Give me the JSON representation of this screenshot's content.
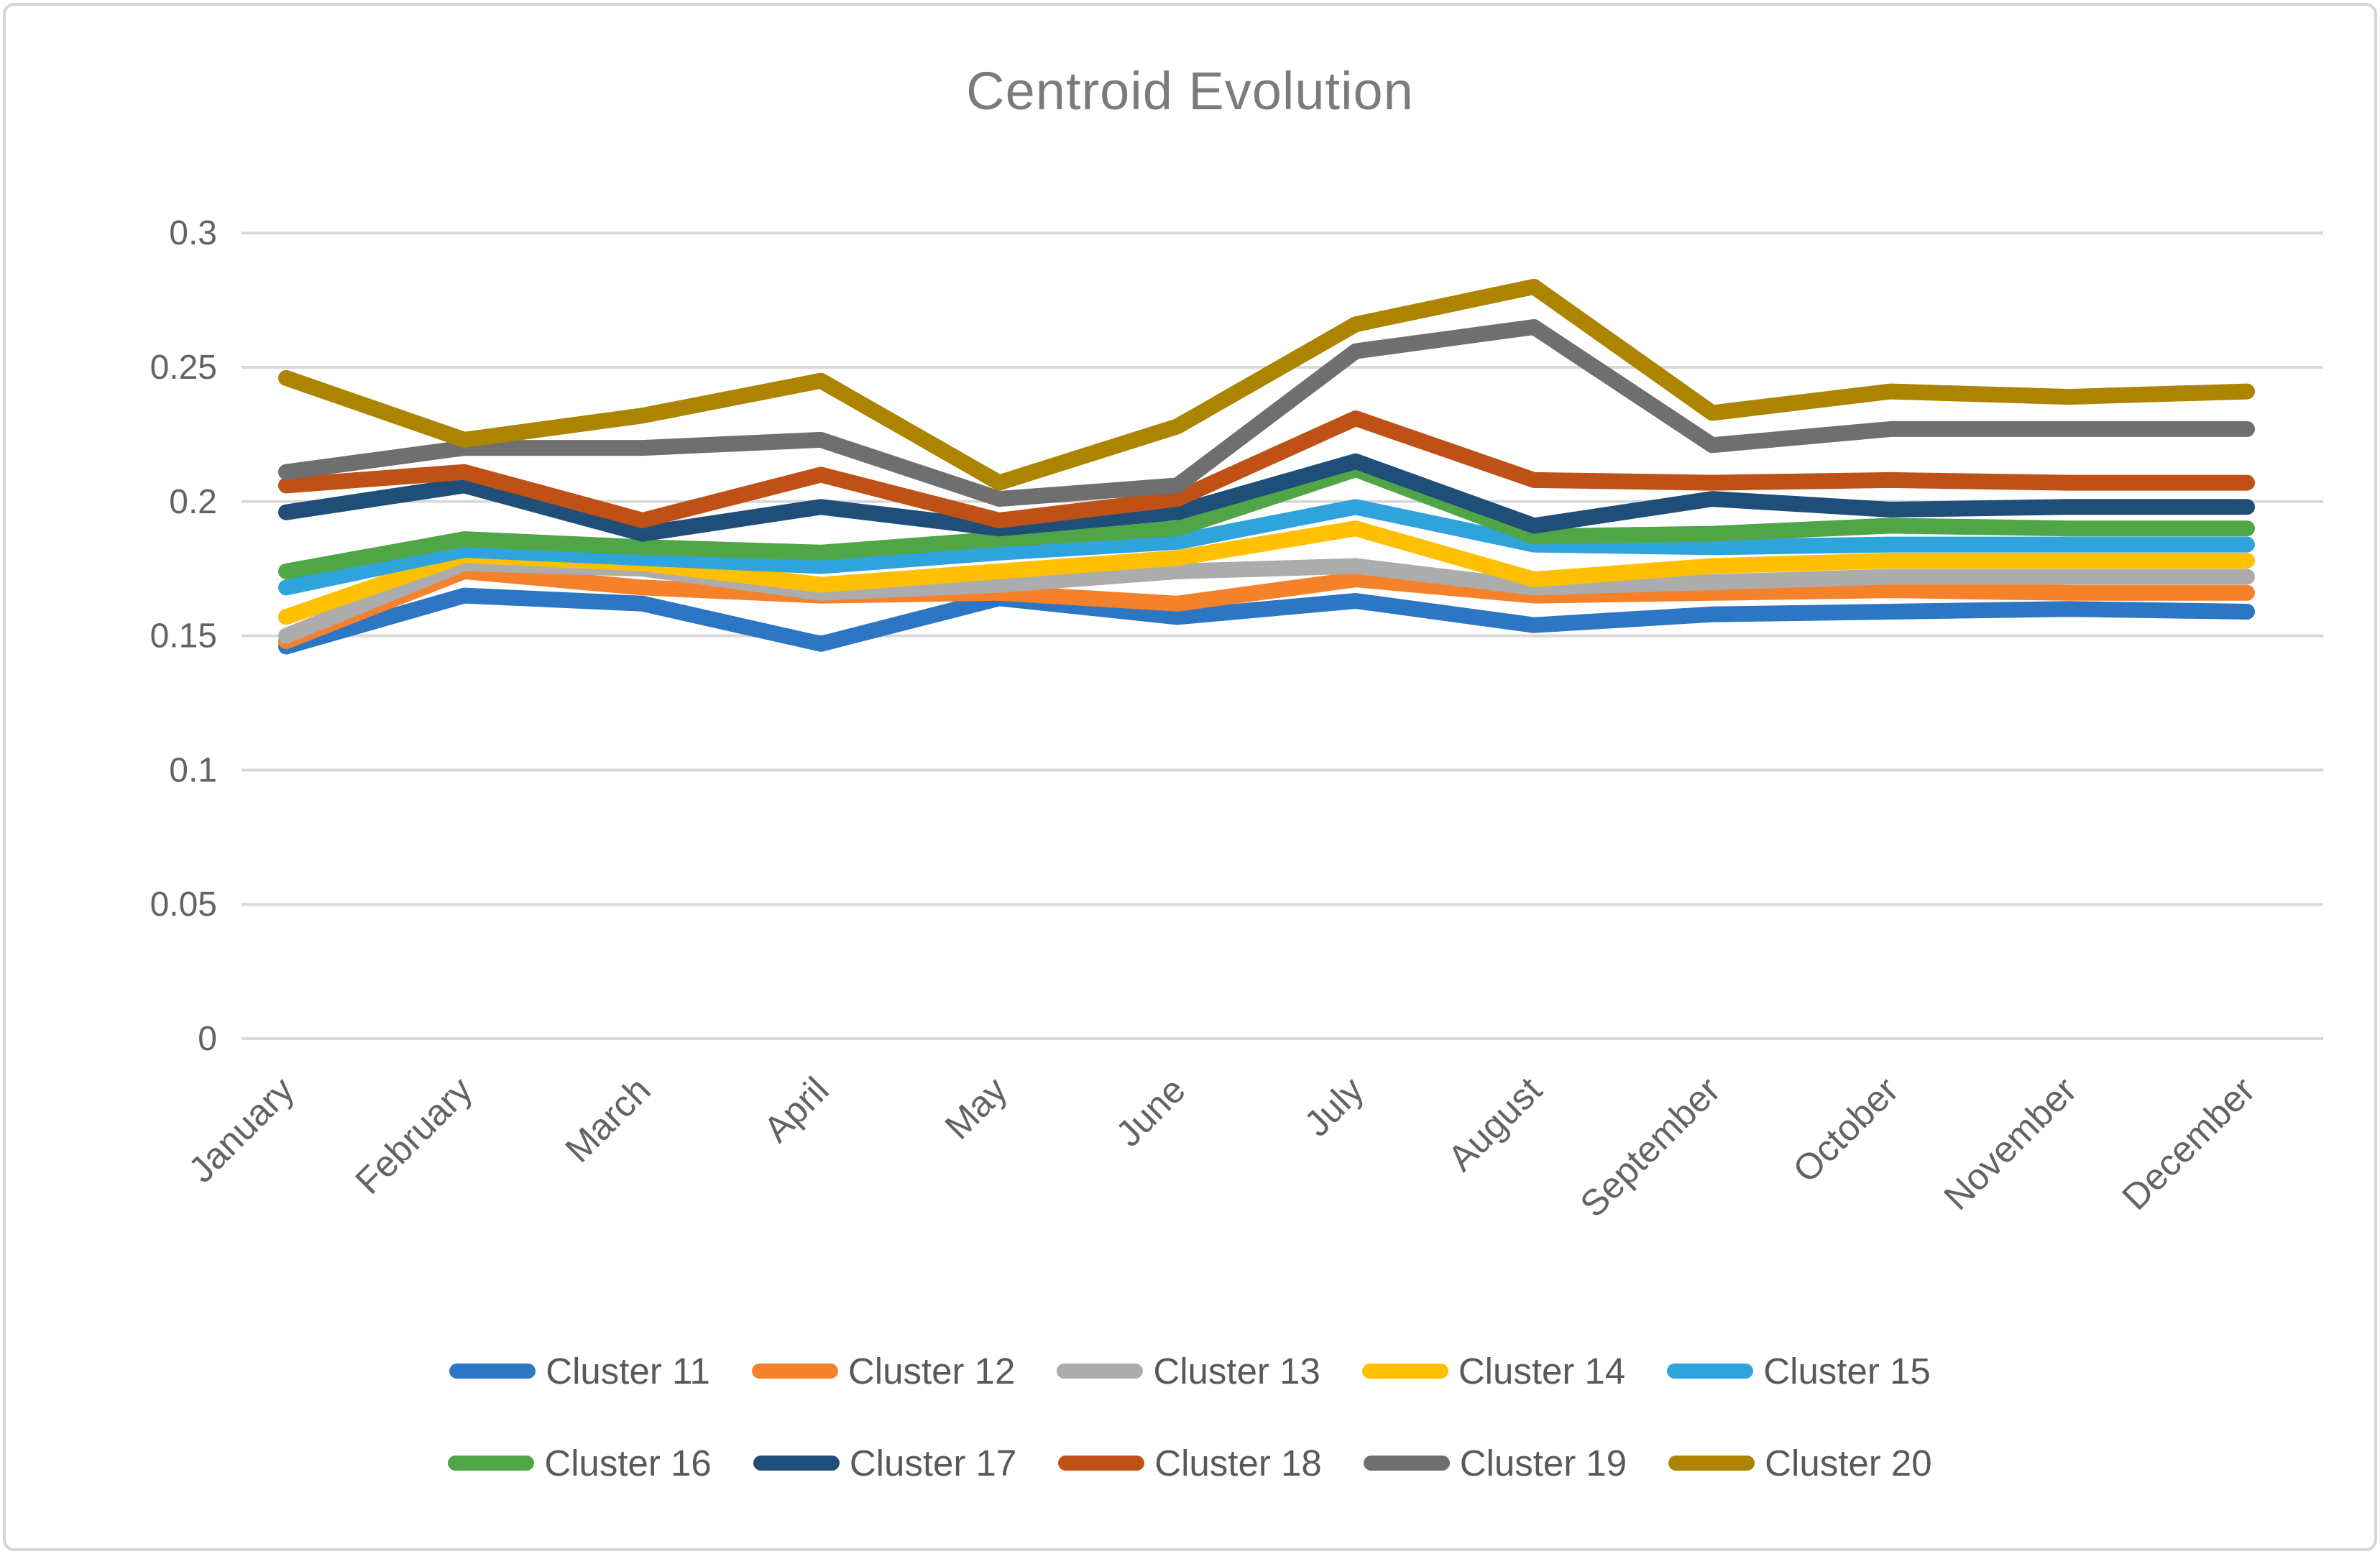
{
  "title": "Centroid Evolution",
  "chart_data": {
    "type": "line",
    "title": "Centroid Evolution",
    "xlabel": "",
    "ylabel": "",
    "ylim": [
      0,
      0.3
    ],
    "yticks": [
      0.3,
      0.25,
      0.2,
      0.15,
      0.1,
      0.05,
      0
    ],
    "ytick_labels": [
      "0.3",
      "0.25",
      "0.2",
      "0.15",
      "0.1",
      "0.05",
      "0"
    ],
    "grid": true,
    "legend_position": "bottom",
    "categories": [
      "January",
      "February",
      "March",
      "April",
      "May",
      "June",
      "July",
      "August",
      "September",
      "October",
      "November",
      "December"
    ],
    "series": [
      {
        "name": "Cluster 11",
        "color": "#2D76C3",
        "values": [
          0.146,
          0.165,
          0.162,
          0.147,
          0.164,
          0.157,
          0.163,
          0.154,
          0.158,
          0.159,
          0.16,
          0.159
        ]
      },
      {
        "name": "Cluster 12",
        "color": "#F5812B",
        "values": [
          0.148,
          0.174,
          0.168,
          0.165,
          0.166,
          0.162,
          0.171,
          0.165,
          0.166,
          0.167,
          0.166,
          0.166
        ]
      },
      {
        "name": "Cluster 13",
        "color": "#ACACAC",
        "values": [
          0.15,
          0.177,
          0.175,
          0.166,
          0.169,
          0.174,
          0.176,
          0.168,
          0.17,
          0.172,
          0.172,
          0.172
        ]
      },
      {
        "name": "Cluster 14",
        "color": "#FFC003",
        "values": [
          0.157,
          0.18,
          0.177,
          0.169,
          0.174,
          0.179,
          0.19,
          0.171,
          0.176,
          0.178,
          0.178,
          0.178
        ]
      },
      {
        "name": "Cluster 15",
        "color": "#2FA3DC",
        "values": [
          0.168,
          0.182,
          0.179,
          0.176,
          0.181,
          0.185,
          0.198,
          0.184,
          0.183,
          0.184,
          0.184,
          0.184
        ]
      },
      {
        "name": "Cluster 16",
        "color": "#50A546",
        "values": [
          0.174,
          0.186,
          0.183,
          0.181,
          0.186,
          0.19,
          0.212,
          0.187,
          0.188,
          0.191,
          0.19,
          0.19
        ]
      },
      {
        "name": "Cluster 17",
        "color": "#1F4E79",
        "values": [
          0.196,
          0.206,
          0.188,
          0.198,
          0.19,
          0.196,
          0.215,
          0.191,
          0.201,
          0.197,
          0.198,
          0.198
        ]
      },
      {
        "name": "Cluster 18",
        "color": "#BF5117",
        "values": [
          0.206,
          0.211,
          0.193,
          0.21,
          0.193,
          0.201,
          0.231,
          0.208,
          0.207,
          0.208,
          0.207,
          0.207
        ]
      },
      {
        "name": "Cluster 19",
        "color": "#6F6F6F",
        "values": [
          0.211,
          0.22,
          0.22,
          0.223,
          0.201,
          0.206,
          0.256,
          0.265,
          0.221,
          0.227,
          0.227,
          0.227
        ]
      },
      {
        "name": "Cluster 20",
        "color": "#AC8400",
        "values": [
          0.246,
          0.223,
          0.232,
          0.245,
          0.207,
          0.228,
          0.266,
          0.28,
          0.233,
          0.241,
          0.239,
          0.241
        ]
      }
    ],
    "colors": {
      "grid": "#D9D9D9",
      "axis_text": "#636363",
      "title_text": "#7B7B7B",
      "legend_text": "#595959",
      "frame_border": "#D6D6D6",
      "background": "#FFFFFF"
    }
  }
}
